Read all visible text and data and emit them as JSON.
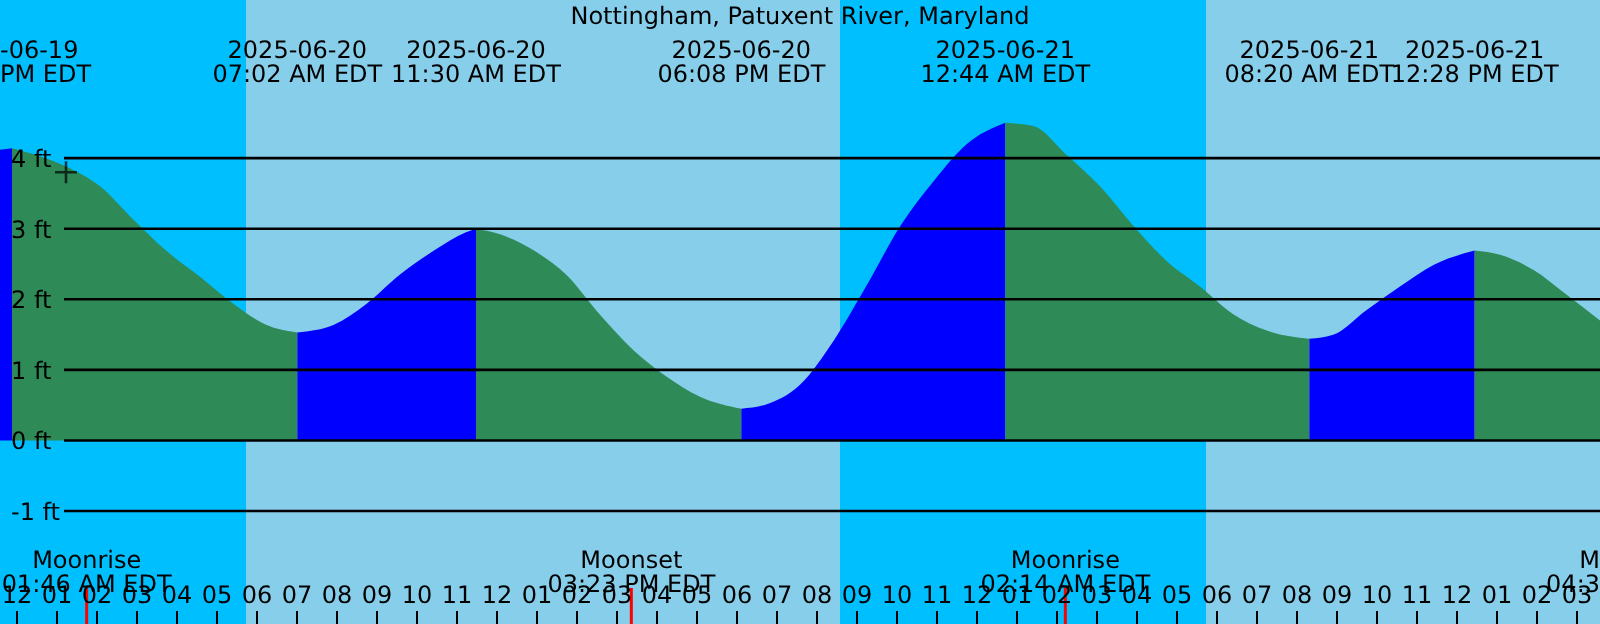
{
  "chart_data": {
    "type": "area",
    "title": "Nottingham, Patuxent River, Maryland",
    "xlim": [
      "2025-06-19T23:36",
      "2025-06-21T15:36"
    ],
    "ylim": [
      -2.6,
      6.24
    ],
    "xticks": [
      {
        "value": "2025-06-20T00:00",
        "label": "12"
      },
      {
        "value": "2025-06-20T01:00",
        "label": "01"
      },
      {
        "value": "2025-06-20T02:00",
        "label": "02"
      },
      {
        "value": "2025-06-20T03:00",
        "label": "03"
      },
      {
        "value": "2025-06-20T04:00",
        "label": "04"
      },
      {
        "value": "2025-06-20T05:00",
        "label": "05"
      },
      {
        "value": "2025-06-20T06:00",
        "label": "06"
      },
      {
        "value": "2025-06-20T07:00",
        "label": "07"
      },
      {
        "value": "2025-06-20T08:00",
        "label": "08"
      },
      {
        "value": "2025-06-20T09:00",
        "label": "09"
      },
      {
        "value": "2025-06-20T10:00",
        "label": "10"
      },
      {
        "value": "2025-06-20T11:00",
        "label": "11"
      },
      {
        "value": "2025-06-20T12:00",
        "label": "12"
      },
      {
        "value": "2025-06-20T13:00",
        "label": "01"
      },
      {
        "value": "2025-06-20T14:00",
        "label": "02"
      },
      {
        "value": "2025-06-20T15:00",
        "label": "03"
      },
      {
        "value": "2025-06-20T16:00",
        "label": "04"
      },
      {
        "value": "2025-06-20T17:00",
        "label": "05"
      },
      {
        "value": "2025-06-20T18:00",
        "label": "06"
      },
      {
        "value": "2025-06-20T19:00",
        "label": "07"
      },
      {
        "value": "2025-06-20T20:00",
        "label": "08"
      },
      {
        "value": "2025-06-20T21:00",
        "label": "09"
      },
      {
        "value": "2025-06-20T22:00",
        "label": "10"
      },
      {
        "value": "2025-06-20T23:00",
        "label": "11"
      },
      {
        "value": "2025-06-21T00:00",
        "label": "12"
      },
      {
        "value": "2025-06-21T01:00",
        "label": "01"
      },
      {
        "value": "2025-06-21T02:00",
        "label": "02"
      },
      {
        "value": "2025-06-21T03:00",
        "label": "03"
      },
      {
        "value": "2025-06-21T04:00",
        "label": "04"
      },
      {
        "value": "2025-06-21T05:00",
        "label": "05"
      },
      {
        "value": "2025-06-21T06:00",
        "label": "06"
      },
      {
        "value": "2025-06-21T07:00",
        "label": "07"
      },
      {
        "value": "2025-06-21T08:00",
        "label": "08"
      },
      {
        "value": "2025-06-21T09:00",
        "label": "09"
      },
      {
        "value": "2025-06-21T10:00",
        "label": "10"
      },
      {
        "value": "2025-06-21T11:00",
        "label": "11"
      },
      {
        "value": "2025-06-21T12:00",
        "label": "12"
      },
      {
        "value": "2025-06-21T13:00",
        "label": "01"
      },
      {
        "value": "2025-06-21T14:00",
        "label": "02"
      },
      {
        "value": "2025-06-21T15:00",
        "label": "03"
      }
    ],
    "yticks": [
      {
        "value": -1,
        "label": "-1 ft"
      },
      {
        "value": 0,
        "label": "0 ft"
      },
      {
        "value": 1,
        "label": "1 ft"
      },
      {
        "value": 2,
        "label": "2 ft"
      },
      {
        "value": 3,
        "label": "3 ft"
      },
      {
        "value": 4,
        "label": "4 ft"
      }
    ],
    "grid": "y",
    "bands": [
      {
        "axis": "x",
        "from": "2025-06-19T23:36",
        "to": "2025-06-20T05:45",
        "color": "#00bfff"
      },
      {
        "axis": "x",
        "from": "2025-06-20T05:45",
        "to": "2025-06-20T20:36",
        "color": "#87ceeb"
      },
      {
        "axis": "x",
        "from": "2025-06-20T20:36",
        "to": "2025-06-21T05:45",
        "color": "#00bfff"
      },
      {
        "axis": "x",
        "from": "2025-06-21T05:45",
        "to": "2025-06-21T15:36",
        "color": "#87ceeb"
      }
    ],
    "series": [
      {
        "color": "#0000ff",
        "x": [
          "2025-06-19T23:36",
          "2025-06-19T23:54"
        ],
        "values": [
          4.12,
          4.14
        ]
      },
      {
        "color": "#2e8b57",
        "x": [
          "2025-06-19T23:54",
          "2025-06-20T01:15",
          "2025-06-20T02:06",
          "2025-06-20T02:57",
          "2025-06-20T03:45",
          "2025-06-20T04:36",
          "2025-06-20T05:27",
          "2025-06-20T06:15",
          "2025-06-20T07:02"
        ],
        "values": [
          4.14,
          3.88,
          3.6,
          3.12,
          2.69,
          2.32,
          1.93,
          1.64,
          1.53
        ]
      },
      {
        "color": "#0000ff",
        "x": [
          "2025-06-20T07:02",
          "2025-06-20T07:57",
          "2025-06-20T08:45",
          "2025-06-20T09:36",
          "2025-06-20T10:27",
          "2025-06-20T11:15",
          "2025-06-20T11:30"
        ],
        "values": [
          1.53,
          1.64,
          1.93,
          2.35,
          2.69,
          2.95,
          3.0
        ]
      },
      {
        "color": "#2e8b57",
        "x": [
          "2025-06-20T11:30",
          "2025-06-20T12:06",
          "2025-06-20T12:57",
          "2025-06-20T13:45",
          "2025-06-20T14:36",
          "2025-06-20T15:27",
          "2025-06-20T16:15",
          "2025-06-20T17:06",
          "2025-06-20T18:08"
        ],
        "values": [
          3.0,
          2.92,
          2.69,
          2.35,
          1.78,
          1.27,
          0.91,
          0.62,
          0.45
        ]
      },
      {
        "color": "#0000ff",
        "x": [
          "2025-06-20T18:08",
          "2025-06-20T18:45",
          "2025-06-20T19:36",
          "2025-06-20T20:27",
          "2025-06-20T21:15",
          "2025-06-20T22:06",
          "2025-06-20T22:57",
          "2025-06-20T23:45",
          "2025-06-21T00:44"
        ],
        "values": [
          0.45,
          0.51,
          0.79,
          1.42,
          2.18,
          3.03,
          3.68,
          4.19,
          4.5
        ]
      },
      {
        "color": "#2e8b57",
        "x": [
          "2025-06-21T00:44",
          "2025-06-21T01:27",
          "2025-06-21T02:15",
          "2025-06-21T03:06",
          "2025-06-21T03:57",
          "2025-06-21T04:45",
          "2025-06-21T05:36",
          "2025-06-21T06:27",
          "2025-06-21T07:15",
          "2025-06-21T08:20"
        ],
        "values": [
          4.5,
          4.45,
          4.05,
          3.6,
          3.03,
          2.55,
          2.18,
          1.78,
          1.56,
          1.44
        ]
      },
      {
        "color": "#0000ff",
        "x": [
          "2025-06-21T08:20",
          "2025-06-21T08:57",
          "2025-06-21T09:45",
          "2025-06-21T10:36",
          "2025-06-21T11:27",
          "2025-06-21T12:28"
        ],
        "values": [
          1.44,
          1.5,
          1.84,
          2.18,
          2.49,
          2.69
        ]
      },
      {
        "color": "#2e8b57",
        "x": [
          "2025-06-21T12:28",
          "2025-06-21T13:06",
          "2025-06-21T13:57",
          "2025-06-21T14:45",
          "2025-06-21T15:36"
        ],
        "values": [
          2.69,
          2.63,
          2.41,
          2.07,
          1.7
        ]
      },
      {
        "type": "scatter",
        "marker": "cross",
        "color": "#000000",
        "x": [
          "2025-06-20T01:15"
        ],
        "values": [
          3.8
        ]
      }
    ],
    "ref_lines": [
      {
        "axis": "x",
        "value": "2025-06-20T01:46",
        "label": "Moonrise\n01:46 AM EDT",
        "color": "#ff0000"
      },
      {
        "axis": "x",
        "value": "2025-06-20T15:23",
        "label": "Moonset\n03:23 PM EDT",
        "color": "#ff0000"
      },
      {
        "axis": "x",
        "value": "2025-06-21T02:14",
        "label": "Moonrise\n02:14 AM EDT",
        "color": "#ff0000"
      }
    ],
    "annotations": [
      "-06-19\nPM EDT",
      "2025-06-20\n07:02 AM EDT",
      "2025-06-20\n11:30 AM EDT",
      "2025-06-20\n06:08 PM EDT",
      "2025-06-21\n12:44 AM EDT",
      "2025-06-21\n08:20 AM EDT",
      "2025-06-21\n12:28 PM EDT",
      "M\n04:3"
    ]
  }
}
